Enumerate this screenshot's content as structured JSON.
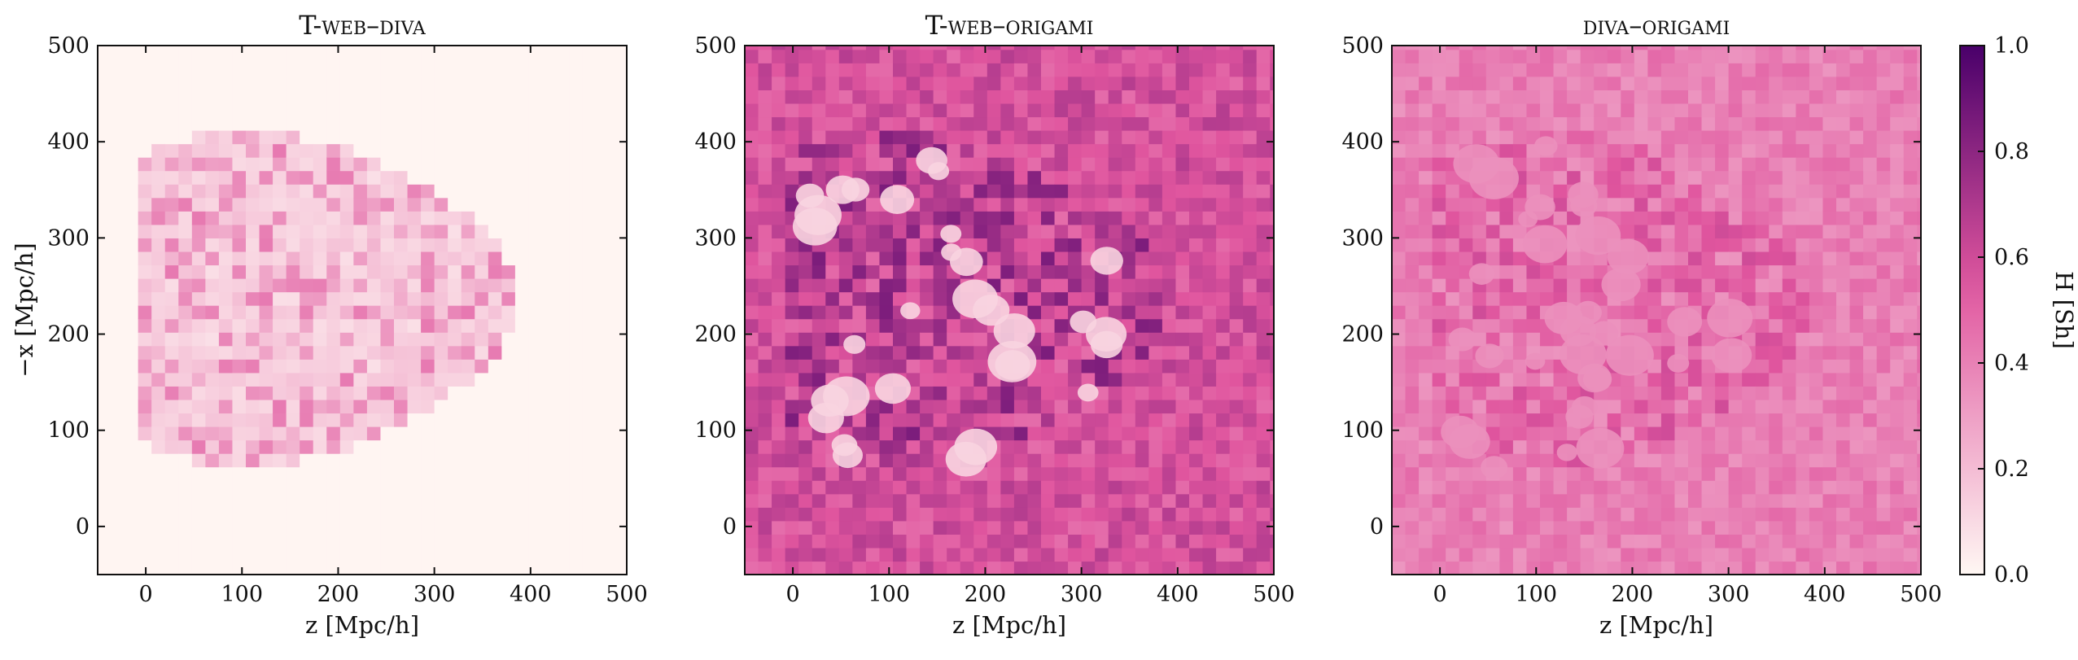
{
  "chart_data": {
    "type": "heatmap",
    "panels": [
      {
        "title": "T-web–diva",
        "title_parts": {
          "prefix": "T-",
          "rest": "web–diva"
        },
        "intensity": 0.18
      },
      {
        "title": "T-web–origami",
        "title_parts": {
          "prefix": "T-",
          "rest": "web–origami"
        },
        "intensity": 0.85
      },
      {
        "title": "diva–origami",
        "title_parts": {
          "prefix": "",
          "rest": "diva–origami"
        },
        "intensity": 0.6
      }
    ],
    "xlabel": "z [Mpc/h]",
    "ylabel": "−x [Mpc/h]",
    "xlim": [
      -50,
      500
    ],
    "ylim": [
      -50,
      500
    ],
    "xticks": [
      "0",
      "100",
      "200",
      "300",
      "400",
      "500"
    ],
    "yticks": [
      "0",
      "100",
      "200",
      "300",
      "400",
      "500"
    ],
    "colorbar": {
      "label": "H [Sh]",
      "range": [
        0.0,
        1.0
      ],
      "ticks": [
        "0.0",
        "0.2",
        "0.4",
        "0.6",
        "0.8",
        "1.0"
      ],
      "colormap": "RdPu",
      "color_low": "#fff7f3",
      "color_mid": "#e0559e",
      "color_high": "#49006a"
    }
  }
}
